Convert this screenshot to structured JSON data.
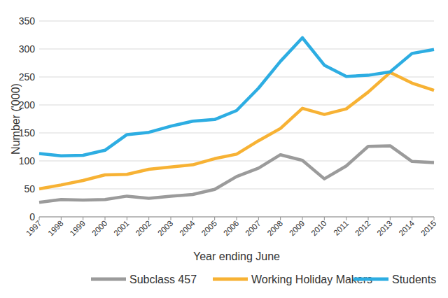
{
  "chart_data": {
    "type": "line",
    "x_label": "Year ending June",
    "y_label": "Number ('000)",
    "categories": [
      "1997",
      "1998",
      "1999",
      "2000",
      "2001",
      "2002",
      "2003",
      "2004",
      "2005",
      "2006",
      "2007",
      "2008",
      "2009",
      "2010",
      "2011",
      "2012",
      "2013",
      "2014",
      "2015"
    ],
    "series": [
      {
        "name": "Subclass 457",
        "color": "#9b9b9b",
        "values": [
          26,
          31,
          30,
          31,
          37,
          33,
          37,
          40,
          49,
          72,
          87,
          111,
          101,
          68,
          91,
          126,
          127,
          99,
          97
        ]
      },
      {
        "name": "Working Holiday Makers",
        "color": "#f7b234",
        "values": [
          50,
          57,
          65,
          75,
          76,
          85,
          89,
          93,
          104,
          112,
          136,
          158,
          194,
          183,
          193,
          223,
          258,
          239,
          226
        ]
      },
      {
        "name": "Students",
        "color": "#2dade2",
        "values": [
          113,
          109,
          110,
          119,
          147,
          151,
          162,
          171,
          174,
          190,
          230,
          278,
          320,
          271,
          251,
          253,
          259,
          292,
          299
        ]
      }
    ],
    "ylim": [
      0,
      350
    ],
    "yticks": [
      0,
      50,
      100,
      150,
      200,
      250,
      300,
      350
    ],
    "grid": true,
    "legend": "bottom"
  }
}
